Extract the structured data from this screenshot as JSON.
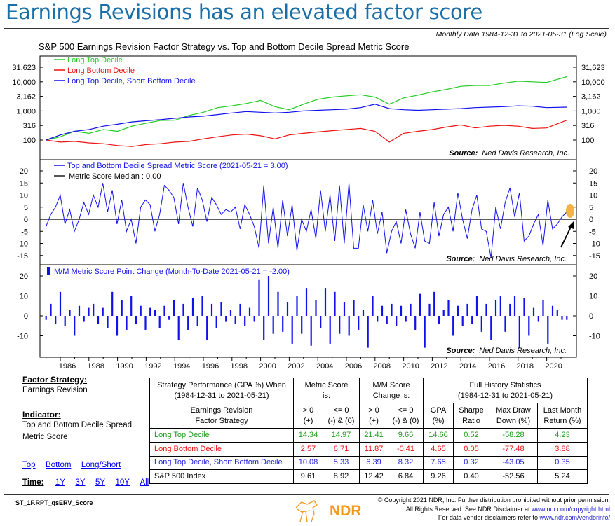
{
  "headline": "Earnings Revisions has an elevated factor score",
  "chart_header": {
    "data_note": "Monthly Data 1984-12-31 to 2021-05-31 (Log Scale)",
    "title": "S&P 500 Earnings Revision Factor Strategy vs. Top and Bottom Decile Spread Metric Score",
    "source_label": "Source:",
    "source_text": "Ned Davis Research, Inc."
  },
  "colors": {
    "green": "#22cc22",
    "red": "#ee1111",
    "blue": "#1111ee",
    "headline": "#1a6fa8",
    "highlight": "#f5a623"
  },
  "chart_data": [
    {
      "type": "line",
      "scale": "log",
      "legend_placement": "top-left",
      "y_ticks": [
        100,
        316,
        1000,
        3162,
        10000,
        31623
      ],
      "y_tick_labels": [
        "100",
        "316",
        "1,000",
        "3,162",
        "10,000",
        "31,623"
      ],
      "x": [
        1985,
        1986,
        1987,
        1988,
        1989,
        1990,
        1991,
        1992,
        1993,
        1994,
        1995,
        1996,
        1997,
        1998,
        1999,
        2000,
        2001,
        2002,
        2003,
        2004,
        2005,
        2006,
        2007,
        2008,
        2009,
        2010,
        2011,
        2012,
        2013,
        2014,
        2015,
        2016,
        2017,
        2018,
        2019,
        2020,
        2021.4
      ],
      "series": [
        {
          "name": "Long Top Decile",
          "color": "#22cc22",
          "values": [
            100,
            130,
            200,
            170,
            230,
            200,
            300,
            380,
            470,
            480,
            700,
            900,
            1300,
            1500,
            1800,
            2300,
            1400,
            1100,
            1700,
            2500,
            3000,
            3300,
            3600,
            3000,
            1700,
            2800,
            3500,
            4500,
            5500,
            7000,
            7500,
            7500,
            9000,
            10500,
            10000,
            9500,
            15000
          ]
        },
        {
          "name": "Long Bottom Decile",
          "color": "#ee1111",
          "values": [
            100,
            85,
            90,
            80,
            75,
            65,
            60,
            70,
            75,
            85,
            90,
            110,
            130,
            150,
            160,
            140,
            110,
            150,
            170,
            190,
            210,
            230,
            250,
            200,
            85,
            170,
            200,
            230,
            280,
            330,
            260,
            300,
            320,
            300,
            250,
            260,
            480
          ]
        },
        {
          "name": "Long Top Decile, Short Bottom Decile",
          "color": "#1111ee",
          "values": [
            100,
            150,
            200,
            230,
            300,
            350,
            420,
            460,
            500,
            560,
            620,
            660,
            750,
            850,
            950,
            900,
            850,
            900,
            1000,
            1050,
            1100,
            1150,
            1300,
            1700,
            1200,
            1100,
            1050,
            1100,
            1150,
            1200,
            1300,
            1350,
            1400,
            1500,
            1450,
            1300,
            1350
          ]
        }
      ]
    },
    {
      "type": "line",
      "x_start": 1985,
      "x_end": 2021.4,
      "y_ticks": [
        -15,
        -10,
        -5,
        0,
        5,
        10,
        15,
        20
      ],
      "series": [
        {
          "name": "Top and Bottom Decile Spread Metric Score (2021-05-21 =  3.00)",
          "color": "#1111ee",
          "values": [
            -3,
            2,
            5,
            10,
            -2,
            4,
            -5,
            0,
            7,
            2,
            10,
            5,
            15,
            3,
            12,
            -2,
            8,
            -5,
            0,
            -10,
            5,
            8,
            6,
            -5,
            2,
            14,
            12,
            9,
            -2,
            15,
            5,
            -3,
            13,
            8,
            -1,
            9,
            6,
            2,
            4,
            3,
            5,
            -4,
            6,
            2,
            -3,
            -12,
            14,
            -10,
            5,
            -12,
            8,
            -7,
            6,
            -13,
            0,
            -5,
            4,
            -8,
            12,
            -5,
            10,
            -9,
            14,
            -10,
            15,
            -12,
            -12,
            6,
            -5,
            8,
            -6,
            3,
            -14,
            -5,
            -1,
            -10,
            4,
            -6,
            -12,
            3,
            -9,
            -10,
            7,
            -7,
            2,
            5,
            -5,
            11,
            0,
            -8,
            4,
            10,
            -4,
            -5,
            -16,
            5,
            -4,
            7,
            13,
            1,
            11,
            -9,
            -7,
            -2,
            2,
            -11,
            8,
            -4,
            -2,
            1,
            3
          ]
        },
        {
          "name": "Metric Score Median : 0.00",
          "color": "#000000",
          "value": 0
        }
      ]
    },
    {
      "type": "bar",
      "x_start": 1985,
      "x_end": 2021.4,
      "y_ticks": [
        -10,
        0,
        10,
        20
      ],
      "series": [
        {
          "name": "M/M  Metric Score Point Change (Month-To-Date 2021-05-21 =  -2.00)",
          "color": "#1111ee",
          "values": [
            -2,
            6,
            -4,
            12,
            -5,
            3,
            -10,
            5,
            -3,
            4,
            6,
            -4,
            4,
            -6,
            12,
            -10,
            8,
            -7,
            10,
            -4,
            5,
            -7,
            4,
            3,
            -6,
            5,
            -2,
            8,
            -12,
            6,
            -7,
            9,
            -5,
            10,
            -12,
            6,
            -6,
            7,
            -3,
            3,
            -4,
            6,
            -5,
            4,
            -3,
            18,
            -12,
            20,
            -9,
            12,
            -8,
            7,
            -14,
            10,
            -9,
            14,
            -15,
            8,
            -6,
            14,
            -14,
            12,
            -9,
            7,
            -10,
            8,
            -7,
            3,
            -16,
            10,
            -3,
            5,
            -4,
            6,
            -5,
            5,
            -3,
            6,
            -7,
            11,
            -16,
            6,
            12,
            -4,
            3,
            8,
            -10,
            5,
            -5,
            6,
            -4,
            10,
            -8,
            6,
            -12,
            8,
            10,
            -8,
            6,
            10,
            -16,
            9,
            -10,
            4,
            -3,
            8,
            -14,
            5,
            3,
            -2,
            -2
          ]
        }
      ]
    },
    {
      "x_tick_labels": [
        "1986",
        "1988",
        "1990",
        "1992",
        "1994",
        "1996",
        "1998",
        "2000",
        "2002",
        "2004",
        "2006",
        "2008",
        "2010",
        "2012",
        "2014",
        "2016",
        "2018",
        "2020"
      ]
    }
  ],
  "left_panel": {
    "factor_label": "Factor Strategy:",
    "factor_value": "Earnings Revision",
    "indicator_label": "Indicator:",
    "indicator_line1": "Top and Bottom Decile Spread",
    "indicator_line2": "Metric Score",
    "links": [
      "Top",
      "Bottom",
      "Long/Short"
    ],
    "time_label": "Time:",
    "time_links": [
      "1Y",
      "3Y",
      "5Y",
      "10Y",
      "All"
    ]
  },
  "table": {
    "h1": [
      "Strategy Performance (GPA %) When",
      "(1984-12-31 to 2021-05-21)"
    ],
    "h_metric": [
      "Metric Score",
      "is:"
    ],
    "h_mm": [
      "M/M Score",
      "Change is:"
    ],
    "h_full": [
      "Full History Statistics",
      "(1984-12-31 to 2021-05-21)"
    ],
    "sub": [
      [
        "Earnings Revision",
        "Factor Strategy"
      ],
      [
        "> 0",
        "(+)"
      ],
      [
        "<= 0",
        "(-) & (0)"
      ],
      [
        "> 0",
        "(+)"
      ],
      [
        "<= 0",
        "(-) & (0)"
      ],
      [
        "GPA",
        "(%)"
      ],
      [
        "Sharpe",
        "Ratio"
      ],
      [
        "Max Draw",
        "Down (%)"
      ],
      [
        "Last Month",
        "Return (%)"
      ]
    ],
    "rows": [
      {
        "cls": "g",
        "cells": [
          "Long Top Decile",
          "14.34",
          "14.97",
          "21.41",
          "9.66",
          "14.66",
          "0.52",
          "-58.28",
          "4.23"
        ]
      },
      {
        "cls": "r",
        "cells": [
          "Long Bottom Decile",
          "2.57",
          "6.71",
          "11.87",
          "-0.41",
          "4.65",
          "0.05",
          "-77.48",
          "3.88"
        ]
      },
      {
        "cls": "b",
        "cells": [
          "Long Top Decile, Short Bottom Decile",
          "10.08",
          "5.33",
          "6.39",
          "8.32",
          "7.65",
          "0.32",
          "-43.05",
          "0.35"
        ]
      },
      {
        "cls": "",
        "cells": [
          "S&P 500 Index",
          "9.61",
          "8.92",
          "12.42",
          "6.84",
          "9.26",
          "0.40",
          "-52.56",
          "5.24"
        ]
      }
    ]
  },
  "footer": {
    "code": "ST_1F.RPT_qsERV_Score",
    "logo_text": "NDR",
    "line1": "© Copyright 2021 NDR, Inc. Further distribution prohibited without prior permission.",
    "line2": "All Rights Reserved. See NDR Disclaimer at ",
    "link2": "www.ndr.com/copyright.html",
    "line3": "For data vendor disclaimers refer to ",
    "link3": "www.ndr.com/vendorinfo/"
  }
}
